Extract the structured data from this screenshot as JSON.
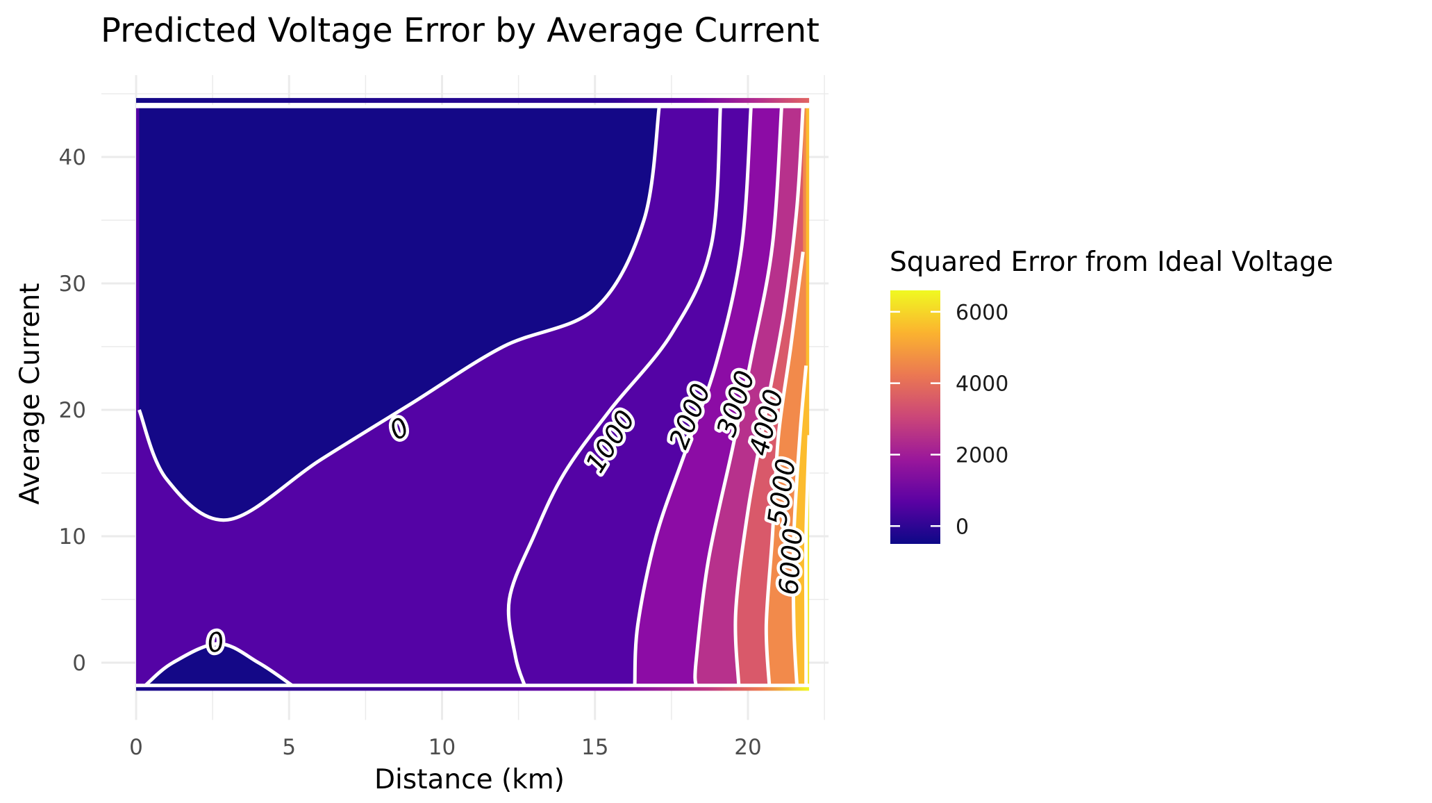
{
  "chart_data": {
    "type": "contour",
    "title": "Predicted Voltage Error by Average Current",
    "xlabel": "Distance (km)",
    "ylabel": "Average Current",
    "xlim": [
      0,
      22
    ],
    "ylim": [
      -2,
      44.5
    ],
    "x_ticks": [
      0,
      5,
      10,
      15,
      20
    ],
    "y_ticks": [
      0,
      10,
      20,
      30,
      40
    ],
    "grid": true,
    "legend": {
      "title": "Squared Error from Ideal Voltage",
      "placement": "right",
      "range": [
        -500,
        6600
      ],
      "ticks": [
        0,
        2000,
        4000,
        6000
      ],
      "colors": [
        "#0d0887",
        "#5b02a3",
        "#9a179b",
        "#cb4678",
        "#eb7852",
        "#fbb32f",
        "#f0f921"
      ]
    },
    "contour_levels": [
      0,
      1000,
      2000,
      3000,
      4000,
      5000,
      6000
    ],
    "contour_labels": [
      {
        "text": "0",
        "x": 2.6,
        "y": 1.6
      },
      {
        "text": "0",
        "x": 8.6,
        "y": 18.5
      },
      {
        "text": "1000",
        "x": 15.5,
        "y": 17.5
      },
      {
        "text": "2000",
        "x": 18.1,
        "y": 19.5
      },
      {
        "text": "3000",
        "x": 19.6,
        "y": 20.5
      },
      {
        "text": "4000",
        "x": 20.6,
        "y": 19.0
      },
      {
        "text": "5000",
        "x": 21.1,
        "y": 13.5
      },
      {
        "text": "6000",
        "x": 21.4,
        "y": 8.0
      }
    ],
    "bands": [
      {
        "min": -500,
        "max": 0,
        "color": "#140887",
        "regions": [
          [
            [
              0.1,
              44
            ],
            [
              17.1,
              44
            ],
            [
              16.6,
              35
            ],
            [
              15,
              28
            ],
            [
              12,
              25
            ],
            [
              9,
              20.5
            ],
            [
              6,
              16
            ],
            [
              3,
              11.3
            ],
            [
              1,
              14.5
            ],
            [
              0.1,
              20
            ]
          ],
          [
            [
              0.3,
              -1.8
            ],
            [
              5.1,
              -1.8
            ],
            [
              4,
              0
            ],
            [
              2.7,
              1.5
            ],
            [
              1.2,
              0
            ]
          ]
        ]
      },
      {
        "min": 0,
        "max": 1000,
        "color": "#5403a5",
        "boundary": [
          [
            19.1,
            44
          ],
          [
            18.8,
            33
          ],
          [
            17.5,
            26
          ],
          [
            15.5,
            20
          ],
          [
            14,
            15
          ],
          [
            13,
            10
          ],
          [
            12.2,
            5
          ],
          [
            12.4,
            0.5
          ],
          [
            12.7,
            -1.8
          ]
        ]
      },
      {
        "min": 1000,
        "max": 2000,
        "color": "#8c0ca5",
        "boundary": [
          [
            20.1,
            44
          ],
          [
            19.8,
            33
          ],
          [
            19,
            24
          ],
          [
            18,
            17
          ],
          [
            17,
            10
          ],
          [
            16.4,
            3
          ],
          [
            16.3,
            -1.8
          ]
        ]
      },
      {
        "min": 2000,
        "max": 3000,
        "color": "#b7318c",
        "boundary": [
          [
            21.1,
            44
          ],
          [
            20.8,
            33
          ],
          [
            20.1,
            24
          ],
          [
            19.5,
            17
          ],
          [
            18.7,
            8
          ],
          [
            18.3,
            0
          ],
          [
            18.3,
            -1.8
          ]
        ]
      },
      {
        "min": 3000,
        "max": 4000,
        "color": "#d9596a",
        "boundary": [
          [
            21.8,
            44
          ],
          [
            21.6,
            36
          ],
          [
            21.2,
            28
          ],
          [
            20.6,
            20
          ],
          [
            20,
            12
          ],
          [
            19.6,
            4
          ],
          [
            19.7,
            -1.8
          ]
        ]
      },
      {
        "min": 4000,
        "max": 5000,
        "color": "#f28a4b",
        "boundary": [
          [
            21.8,
            32.5
          ],
          [
            21.4,
            25
          ],
          [
            21.0,
            18
          ],
          [
            20.8,
            10
          ],
          [
            20.6,
            3
          ],
          [
            20.7,
            -1.8
          ]
        ]
      },
      {
        "min": 5000,
        "max": 6000,
        "color": "#fcbc2e",
        "boundary": [
          [
            21.9,
            23.5
          ],
          [
            21.7,
            18
          ],
          [
            21.5,
            10
          ],
          [
            21.5,
            3
          ],
          [
            21.6,
            -1.8
          ]
        ]
      },
      {
        "min": 6000,
        "max": 6600,
        "color": "#f4e925",
        "boundary": [
          [
            22,
            18
          ],
          [
            21.9,
            10
          ],
          [
            21.9,
            3
          ],
          [
            21.9,
            -1.8
          ]
        ]
      }
    ]
  }
}
